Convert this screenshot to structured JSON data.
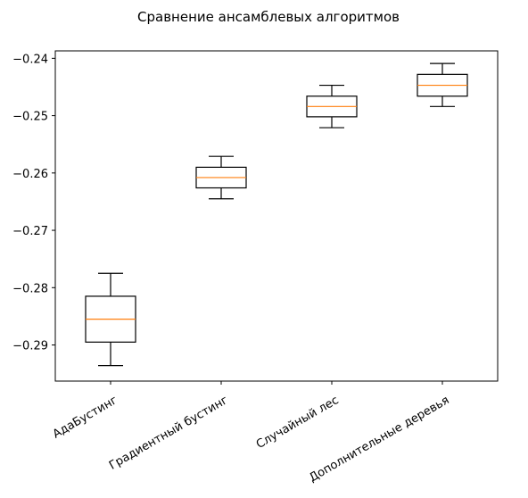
{
  "chart_data": {
    "type": "box",
    "title": "Сравнение ансамблевых алгоритмов",
    "xlabel": "",
    "ylabel": "",
    "ylim": [
      -0.2963,
      -0.2387
    ],
    "yticks": [
      {
        "value": -0.24,
        "label": "−0.24"
      },
      {
        "value": -0.25,
        "label": "−0.25"
      },
      {
        "value": -0.26,
        "label": "−0.26"
      },
      {
        "value": -0.27,
        "label": "−0.27"
      },
      {
        "value": -0.28,
        "label": "−0.28"
      },
      {
        "value": -0.29,
        "label": "−0.29"
      }
    ],
    "categories": [
      "АдаБустинг",
      "Градиентный бустинг",
      "Случайный лес",
      "Дополнительные деревья"
    ],
    "xtick_rotation_deg": 30,
    "grid": false,
    "legend": "none",
    "boxes": [
      {
        "category": "АдаБустинг",
        "whisker_low": -0.2936,
        "q1": -0.2895,
        "median": -0.2855,
        "q3": -0.2815,
        "whisker_high": -0.2775
      },
      {
        "category": "Градиентный бустинг",
        "whisker_low": -0.2645,
        "q1": -0.2626,
        "median": -0.2608,
        "q3": -0.259,
        "whisker_high": -0.2571
      },
      {
        "category": "Случайный лес",
        "whisker_low": -0.2521,
        "q1": -0.2502,
        "median": -0.2484,
        "q3": -0.2466,
        "whisker_high": -0.2447
      },
      {
        "category": "Дополнительные деревья",
        "whisker_low": -0.2484,
        "q1": -0.2466,
        "median": -0.2447,
        "q3": -0.2428,
        "whisker_high": -0.2409
      }
    ],
    "colors": {
      "box": "#000000",
      "median": "#ff7f0e",
      "axes": "#000000",
      "background": "#ffffff"
    }
  }
}
